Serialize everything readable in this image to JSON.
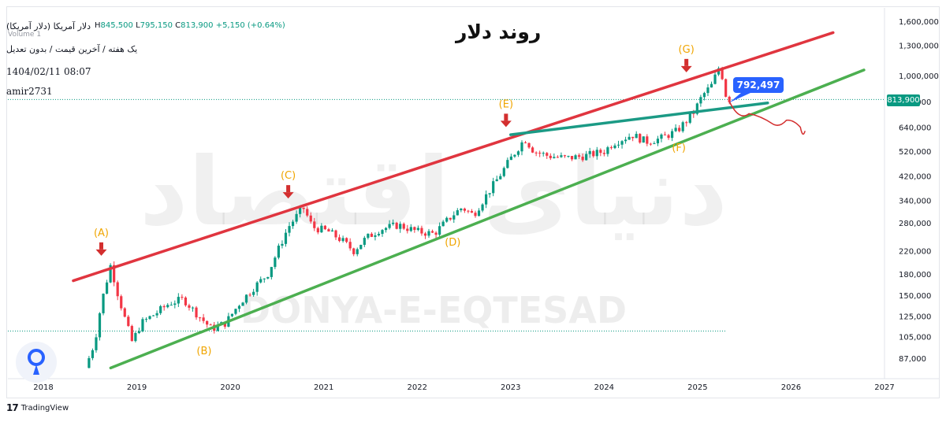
{
  "header": {
    "symbol": "دلار آمریکا (دلار آمریکا)",
    "ohlc": [
      {
        "k": "H",
        "v": "845,500"
      },
      {
        "k": "L",
        "v": "795,150"
      },
      {
        "k": "C",
        "v": "813,900"
      },
      {
        "k": "",
        "v": "+5,150 (+0.64%)"
      }
    ],
    "volume_label": "Volume 1",
    "subtitle": "یک هفته / آخرین قیمت / بدون تعدیل",
    "date": "1404/02/11 08:07",
    "user": "amir2731"
  },
  "title": "روند دلار",
  "watermark": {
    "text": "DONYA-E-EQTESAD",
    "arabic": "دنیای اقتصاد"
  },
  "branding": {
    "tradingview": "TradingView",
    "tv_mark": "17"
  },
  "colors": {
    "up": "#089981",
    "down": "#f23645",
    "resistance": "#e0353f",
    "support": "#4caf50",
    "trendline": "#1b9a85",
    "label": "#f0a500",
    "arrow": "#d32f2f",
    "callout": "#2962ff",
    "forecast": "#d32f2f"
  },
  "chart_data": {
    "type": "candlestick",
    "title": "روند دلار",
    "xlabel": "",
    "ylabel": "",
    "x_axis": {
      "ticks": [
        "2018",
        "2019",
        "2020",
        "2021",
        "2022",
        "2023",
        "2024",
        "2025",
        "2026",
        "2027"
      ],
      "range": [
        2018.0,
        2027.0
      ]
    },
    "y_axis": {
      "scale": "log",
      "ticks": [
        87000,
        105000,
        125000,
        150000,
        180000,
        220000,
        280000,
        340000,
        420000,
        520000,
        640000,
        800000,
        1000000,
        1300000,
        1600000
      ],
      "tick_labels": [
        "87,000",
        "105,000",
        "125,000",
        "150,000",
        "180,000",
        "220,000",
        "280,000",
        "340,000",
        "420,000",
        "520,000",
        "640,000",
        "800,000",
        "1,000,000",
        "1,300,000",
        "1,600,000"
      ],
      "range": [
        75000,
        1750000
      ],
      "position": "right"
    },
    "last_price": {
      "value": 813900,
      "label": "813,900"
    },
    "callout": {
      "value": 792497,
      "label": "792,497"
    },
    "price_path": [
      [
        2018.45,
        80000
      ],
      [
        2018.55,
        100000
      ],
      [
        2018.62,
        140000
      ],
      [
        2018.72,
        195000
      ],
      [
        2018.8,
        150000
      ],
      [
        2018.88,
        120000
      ],
      [
        2018.95,
        100000
      ],
      [
        2019.05,
        118000
      ],
      [
        2019.2,
        128000
      ],
      [
        2019.35,
        140000
      ],
      [
        2019.5,
        145000
      ],
      [
        2019.62,
        130000
      ],
      [
        2019.8,
        112000
      ],
      [
        2019.95,
        118000
      ],
      [
        2020.1,
        140000
      ],
      [
        2020.25,
        160000
      ],
      [
        2020.4,
        180000
      ],
      [
        2020.52,
        225000
      ],
      [
        2020.62,
        270000
      ],
      [
        2020.78,
        320000
      ],
      [
        2020.88,
        270000
      ],
      [
        2021.05,
        260000
      ],
      [
        2021.2,
        240000
      ],
      [
        2021.32,
        220000
      ],
      [
        2021.45,
        245000
      ],
      [
        2021.6,
        265000
      ],
      [
        2021.8,
        275000
      ],
      [
        2022.0,
        260000
      ],
      [
        2022.18,
        255000
      ],
      [
        2022.38,
        300000
      ],
      [
        2022.48,
        320000
      ],
      [
        2022.6,
        300000
      ],
      [
        2022.75,
        360000
      ],
      [
        2022.88,
        420000
      ],
      [
        2023.02,
        500000
      ],
      [
        2023.15,
        580000
      ],
      [
        2023.25,
        520000
      ],
      [
        2023.4,
        500000
      ],
      [
        2023.6,
        490000
      ],
      [
        2023.8,
        500000
      ],
      [
        2024.0,
        520000
      ],
      [
        2024.1,
        560000
      ],
      [
        2024.3,
        600000
      ],
      [
        2024.45,
        565000
      ],
      [
        2024.6,
        580000
      ],
      [
        2024.78,
        620000
      ],
      [
        2024.95,
        720000
      ],
      [
        2025.05,
        840000
      ],
      [
        2025.15,
        920000
      ],
      [
        2025.24,
        1100000
      ],
      [
        2025.3,
        850000
      ],
      [
        2025.34,
        813900
      ]
    ],
    "lines": [
      {
        "name": "resistance",
        "from": [
          2018.32,
          170000
        ],
        "to": [
          2026.45,
          1450000
        ]
      },
      {
        "name": "support",
        "from": [
          2018.72,
          80000
        ],
        "to": [
          2026.78,
          1050000
        ]
      },
      {
        "name": "trendline",
        "from": [
          2023.0,
          600000
        ],
        "to": [
          2025.75,
          790000
        ]
      }
    ],
    "forecast_path": [
      [
        2025.34,
        800000
      ],
      [
        2025.55,
        720000
      ],
      [
        2025.8,
        660000
      ],
      [
        2025.95,
        680000
      ],
      [
        2026.1,
        640000
      ],
      [
        2026.15,
        620000
      ]
    ],
    "annotations": [
      {
        "text": "(A)",
        "x": 2018.62,
        "y": 250000,
        "arrow": true
      },
      {
        "text": "(B)",
        "x": 2019.72,
        "y": 90000,
        "arrow": false
      },
      {
        "text": "(C)",
        "x": 2020.62,
        "y": 410000,
        "arrow": true
      },
      {
        "text": "(D)",
        "x": 2022.38,
        "y": 230000,
        "arrow": false
      },
      {
        "text": "(E)",
        "x": 2022.95,
        "y": 760000,
        "arrow": true
      },
      {
        "text": "(F)",
        "x": 2024.8,
        "y": 520000,
        "arrow": false
      },
      {
        "text": "(G)",
        "x": 2024.88,
        "y": 1220000,
        "arrow": true
      }
    ],
    "grid": false,
    "legend": "none"
  }
}
